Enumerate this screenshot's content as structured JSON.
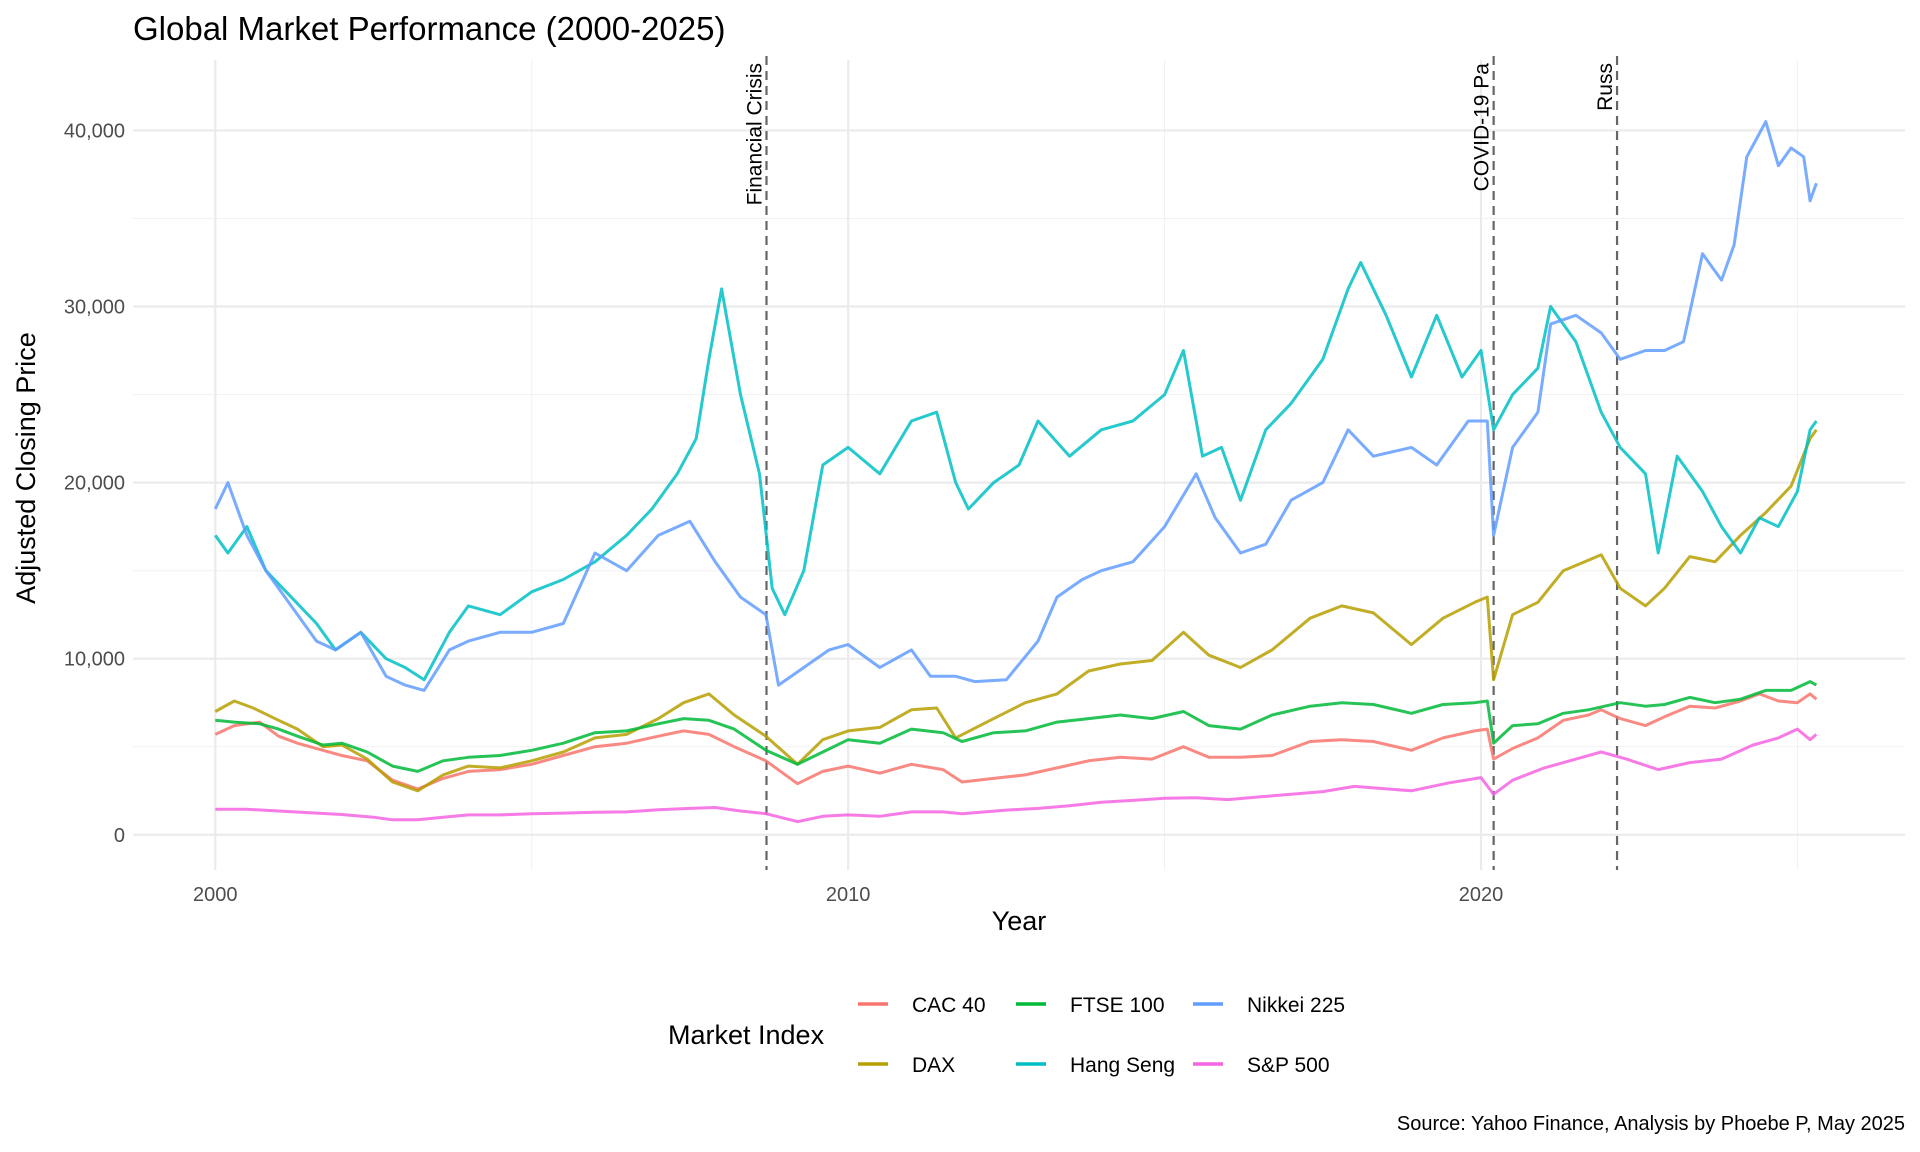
{
  "chart_data": {
    "type": "line",
    "title": "Global Market Performance (2000-2025)",
    "xlabel": "Year",
    "ylabel": "Adjusted Closing Price",
    "caption": "Source: Yahoo Finance, Analysis by Phoebe P, May 2025",
    "xlim": [
      1998.7,
      2026.7
    ],
    "ylim": [
      -2000,
      44000
    ],
    "x_ticks": [
      2000,
      2010,
      2020
    ],
    "x_tick_labels": [
      "2000",
      "2010",
      "2020"
    ],
    "y_ticks": [
      0,
      10000,
      20000,
      30000,
      40000
    ],
    "y_tick_labels": [
      "0",
      "10,000",
      "20,000",
      "30,000",
      "40,000"
    ],
    "grid": true,
    "legend": {
      "title": "Market Index",
      "position": "bottom",
      "entries": [
        "CAC 40",
        "FTSE 100",
        "Nikkei 225",
        "DAX",
        "Hang Seng",
        "S&P 500"
      ]
    },
    "events": [
      {
        "x": 2008.71,
        "label": "Financial Crisis"
      },
      {
        "x": 2020.2,
        "label": "COVID-19 Pa"
      },
      {
        "x": 2022.15,
        "label": "Russ"
      }
    ],
    "series": [
      {
        "name": "CAC 40",
        "color": "#F8766D",
        "x": [
          2000.0,
          2000.3,
          2000.7,
          2001.0,
          2001.3,
          2001.7,
          2002.0,
          2002.4,
          2002.8,
          2003.2,
          2003.6,
          2004.0,
          2004.5,
          2005.0,
          2005.5,
          2006.0,
          2006.5,
          2007.0,
          2007.4,
          2007.8,
          2008.2,
          2008.7,
          2009.2,
          2009.6,
          2010.0,
          2010.5,
          2011.0,
          2011.5,
          2011.8,
          2012.3,
          2012.8,
          2013.3,
          2013.8,
          2014.3,
          2014.8,
          2015.3,
          2015.7,
          2016.2,
          2016.7,
          2017.3,
          2017.8,
          2018.3,
          2018.9,
          2019.4,
          2019.9,
          2020.1,
          2020.2,
          2020.5,
          2020.9,
          2021.3,
          2021.7,
          2021.9,
          2022.2,
          2022.6,
          2022.9,
          2023.3,
          2023.7,
          2024.1,
          2024.4,
          2024.7,
          2025.0,
          2025.2,
          2025.3
        ],
        "y": [
          5700,
          6200,
          6400,
          5600,
          5200,
          4800,
          4500,
          4200,
          3100,
          2600,
          3200,
          3600,
          3700,
          4000,
          4500,
          5000,
          5200,
          5600,
          5900,
          5700,
          5000,
          4200,
          2900,
          3600,
          3900,
          3500,
          4000,
          3700,
          3000,
          3200,
          3400,
          3800,
          4200,
          4400,
          4300,
          5000,
          4400,
          4400,
          4500,
          5300,
          5400,
          5300,
          4800,
          5500,
          5900,
          6000,
          4300,
          4900,
          5500,
          6500,
          6800,
          7100,
          6600,
          6200,
          6700,
          7300,
          7200,
          7600,
          8000,
          7600,
          7500,
          8000,
          7700
        ]
      },
      {
        "name": "DAX",
        "color": "#B79F00",
        "x": [
          2000.0,
          2000.3,
          2000.6,
          2001.0,
          2001.3,
          2001.7,
          2002.0,
          2002.4,
          2002.8,
          2003.2,
          2003.6,
          2004.0,
          2004.5,
          2005.0,
          2005.5,
          2006.0,
          2006.5,
          2007.0,
          2007.4,
          2007.8,
          2008.2,
          2008.7,
          2009.2,
          2009.6,
          2010.0,
          2010.5,
          2011.0,
          2011.4,
          2011.7,
          2012.3,
          2012.8,
          2013.3,
          2013.8,
          2014.3,
          2014.8,
          2015.3,
          2015.7,
          2016.2,
          2016.7,
          2017.3,
          2017.8,
          2018.3,
          2018.9,
          2019.4,
          2019.9,
          2020.1,
          2020.2,
          2020.5,
          2020.9,
          2021.3,
          2021.7,
          2021.9,
          2022.2,
          2022.6,
          2022.9,
          2023.3,
          2023.7,
          2024.1,
          2024.5,
          2024.9,
          2025.2,
          2025.3
        ],
        "y": [
          7000,
          7600,
          7200,
          6500,
          6000,
          5000,
          5100,
          4300,
          3000,
          2500,
          3400,
          3900,
          3800,
          4200,
          4700,
          5500,
          5700,
          6600,
          7500,
          8000,
          6800,
          5600,
          4000,
          5400,
          5900,
          6100,
          7100,
          7200,
          5500,
          6600,
          7500,
          8000,
          9300,
          9700,
          9900,
          11500,
          10200,
          9500,
          10500,
          12300,
          13000,
          12600,
          10800,
          12300,
          13200,
          13500,
          8800,
          12500,
          13200,
          15000,
          15600,
          15900,
          14000,
          13000,
          14000,
          15800,
          15500,
          17000,
          18300,
          19800,
          22500,
          23000
        ]
      },
      {
        "name": "FTSE 100",
        "color": "#00BA38",
        "x": [
          2000.0,
          2000.3,
          2000.7,
          2001.0,
          2001.3,
          2001.7,
          2002.0,
          2002.4,
          2002.8,
          2003.2,
          2003.6,
          2004.0,
          2004.5,
          2005.0,
          2005.5,
          2006.0,
          2006.5,
          2007.0,
          2007.4,
          2007.8,
          2008.2,
          2008.7,
          2009.2,
          2009.6,
          2010.0,
          2010.5,
          2011.0,
          2011.5,
          2011.8,
          2012.3,
          2012.8,
          2013.3,
          2013.8,
          2014.3,
          2014.8,
          2015.3,
          2015.7,
          2016.2,
          2016.7,
          2017.3,
          2017.8,
          2018.3,
          2018.9,
          2019.4,
          2019.9,
          2020.1,
          2020.2,
          2020.5,
          2020.9,
          2021.3,
          2021.7,
          2022.2,
          2022.6,
          2022.9,
          2023.3,
          2023.7,
          2024.1,
          2024.5,
          2024.9,
          2025.2,
          2025.3
        ],
        "y": [
          6500,
          6400,
          6300,
          6000,
          5600,
          5100,
          5200,
          4700,
          3900,
          3600,
          4200,
          4400,
          4500,
          4800,
          5200,
          5800,
          5900,
          6300,
          6600,
          6500,
          6000,
          4800,
          4000,
          4700,
          5400,
          5200,
          6000,
          5800,
          5300,
          5800,
          5900,
          6400,
          6600,
          6800,
          6600,
          7000,
          6200,
          6000,
          6800,
          7300,
          7500,
          7400,
          6900,
          7400,
          7500,
          7600,
          5200,
          6200,
          6300,
          6900,
          7100,
          7500,
          7300,
          7400,
          7800,
          7500,
          7700,
          8200,
          8200,
          8700,
          8500
        ]
      },
      {
        "name": "Hang Seng",
        "color": "#00BFC4",
        "x": [
          2000.0,
          2000.2,
          2000.5,
          2000.8,
          2001.2,
          2001.6,
          2001.9,
          2002.3,
          2002.7,
          2003.0,
          2003.3,
          2003.7,
          2004.0,
          2004.5,
          2005.0,
          2005.5,
          2006.0,
          2006.5,
          2006.9,
          2007.3,
          2007.6,
          2007.8,
          2008.0,
          2008.3,
          2008.6,
          2008.8,
          2009.0,
          2009.3,
          2009.6,
          2010.0,
          2010.5,
          2011.0,
          2011.4,
          2011.7,
          2011.9,
          2012.3,
          2012.7,
          2013.0,
          2013.5,
          2014.0,
          2014.5,
          2015.0,
          2015.3,
          2015.6,
          2015.9,
          2016.2,
          2016.6,
          2017.0,
          2017.5,
          2017.9,
          2018.1,
          2018.5,
          2018.9,
          2019.3,
          2019.7,
          2020.0,
          2020.2,
          2020.5,
          2020.9,
          2021.1,
          2021.5,
          2021.9,
          2022.2,
          2022.6,
          2022.8,
          2023.1,
          2023.5,
          2023.8,
          2024.1,
          2024.4,
          2024.7,
          2025.0,
          2025.2,
          2025.3
        ],
        "y": [
          17000,
          16000,
          17500,
          15000,
          13500,
          12000,
          10500,
          11500,
          10000,
          9500,
          8800,
          11500,
          13000,
          12500,
          13800,
          14500,
          15500,
          17000,
          18500,
          20500,
          22500,
          27000,
          31000,
          25000,
          20500,
          14000,
          12500,
          15000,
          21000,
          22000,
          20500,
          23500,
          24000,
          20000,
          18500,
          20000,
          21000,
          23500,
          21500,
          23000,
          23500,
          25000,
          27500,
          21500,
          22000,
          19000,
          23000,
          24500,
          27000,
          31000,
          32500,
          29500,
          26000,
          29500,
          26000,
          27500,
          23000,
          25000,
          26500,
          30000,
          28000,
          24000,
          22000,
          20500,
          16000,
          21500,
          19500,
          17500,
          16000,
          18000,
          17500,
          19500,
          23000,
          23500
        ]
      },
      {
        "name": "Nikkei 225",
        "color": "#619CFF",
        "x": [
          2000.0,
          2000.2,
          2000.5,
          2000.8,
          2001.2,
          2001.6,
          2001.9,
          2002.3,
          2002.7,
          2003.0,
          2003.3,
          2003.7,
          2004.0,
          2004.5,
          2005.0,
          2005.5,
          2006.0,
          2006.5,
          2007.0,
          2007.5,
          2007.9,
          2008.3,
          2008.7,
          2008.9,
          2009.3,
          2009.7,
          2010.0,
          2010.5,
          2011.0,
          2011.3,
          2011.7,
          2012.0,
          2012.5,
          2013.0,
          2013.3,
          2013.7,
          2014.0,
          2014.5,
          2015.0,
          2015.5,
          2015.8,
          2016.2,
          2016.6,
          2017.0,
          2017.5,
          2017.9,
          2018.3,
          2018.9,
          2019.3,
          2019.8,
          2020.1,
          2020.2,
          2020.5,
          2020.9,
          2021.1,
          2021.5,
          2021.9,
          2022.2,
          2022.6,
          2022.9,
          2023.2,
          2023.5,
          2023.8,
          2024.0,
          2024.2,
          2024.5,
          2024.7,
          2024.9,
          2025.1,
          2025.2,
          2025.3
        ],
        "y": [
          18500,
          20000,
          17000,
          15000,
          13000,
          11000,
          10500,
          11500,
          9000,
          8500,
          8200,
          10500,
          11000,
          11500,
          11500,
          12000,
          16000,
          15000,
          17000,
          17800,
          15500,
          13500,
          12500,
          8500,
          9500,
          10500,
          10800,
          9500,
          10500,
          9000,
          9000,
          8700,
          8800,
          11000,
          13500,
          14500,
          15000,
          15500,
          17500,
          20500,
          18000,
          16000,
          16500,
          19000,
          20000,
          23000,
          21500,
          22000,
          21000,
          23500,
          23500,
          17000,
          22000,
          24000,
          29000,
          29500,
          28500,
          27000,
          27500,
          27500,
          28000,
          33000,
          31500,
          33500,
          38500,
          40500,
          38000,
          39000,
          38500,
          36000,
          37000
        ]
      },
      {
        "name": "S&P 500",
        "color": "#F564E3",
        "x": [
          2000.0,
          2000.5,
          2001.0,
          2001.5,
          2002.0,
          2002.5,
          2002.8,
          2003.2,
          2003.6,
          2004.0,
          2004.5,
          2005.0,
          2005.5,
          2006.0,
          2006.5,
          2007.0,
          2007.5,
          2007.9,
          2008.3,
          2008.7,
          2009.2,
          2009.6,
          2010.0,
          2010.5,
          2011.0,
          2011.5,
          2011.8,
          2012.5,
          2013.0,
          2013.5,
          2014.0,
          2014.5,
          2015.0,
          2015.5,
          2016.0,
          2016.5,
          2017.0,
          2017.5,
          2018.0,
          2018.9,
          2019.5,
          2020.0,
          2020.2,
          2020.5,
          2021.0,
          2021.5,
          2021.9,
          2022.3,
          2022.8,
          2023.3,
          2023.8,
          2024.3,
          2024.7,
          2025.0,
          2025.2,
          2025.3
        ],
        "y": [
          1450,
          1450,
          1350,
          1250,
          1150,
          1000,
          850,
          850,
          1000,
          1130,
          1130,
          1200,
          1230,
          1280,
          1300,
          1420,
          1500,
          1550,
          1350,
          1200,
          750,
          1050,
          1130,
          1050,
          1300,
          1300,
          1200,
          1400,
          1500,
          1650,
          1850,
          1950,
          2070,
          2100,
          2000,
          2150,
          2300,
          2450,
          2750,
          2500,
          2950,
          3250,
          2300,
          3100,
          3800,
          4300,
          4700,
          4300,
          3700,
          4100,
          4300,
          5100,
          5500,
          6000,
          5400,
          5700
        ]
      }
    ]
  }
}
